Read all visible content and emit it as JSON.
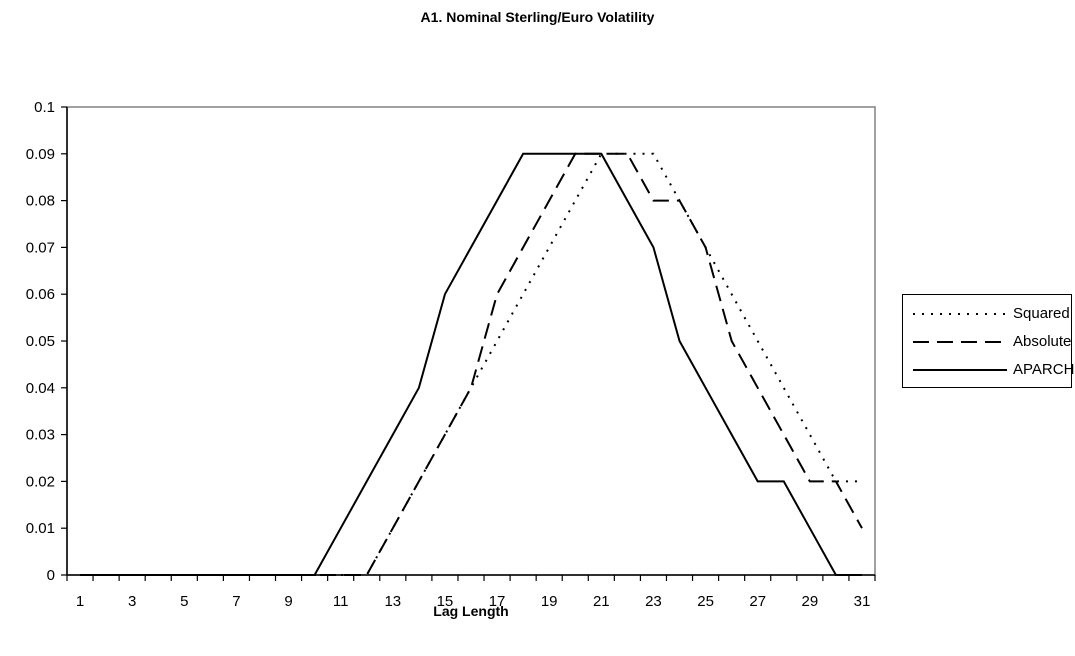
{
  "chart_data": {
    "type": "line",
    "title": "A1. Nominal Sterling/Euro Volatility",
    "xlabel": "Lag Length",
    "ylabel": "",
    "x": [
      1,
      2,
      3,
      4,
      5,
      6,
      7,
      8,
      9,
      10,
      11,
      12,
      13,
      14,
      15,
      16,
      17,
      18,
      19,
      20,
      21,
      22,
      23,
      24,
      25,
      26,
      27,
      28,
      29,
      30,
      31
    ],
    "x_tick_labels": [
      "1",
      "3",
      "5",
      "7",
      "9",
      "11",
      "13",
      "15",
      "17",
      "19",
      "21",
      "23",
      "25",
      "27",
      "29",
      "31"
    ],
    "y_tick_labels": [
      "0",
      "0.01",
      "0.02",
      "0.03",
      "0.04",
      "0.05",
      "0.06",
      "0.07",
      "0.08",
      "0.09",
      "0.1"
    ],
    "ylim": [
      0,
      0.1
    ],
    "grid": false,
    "legend_position": "right",
    "series": [
      {
        "name": "Squared",
        "style": "dotted",
        "values": [
          0,
          0,
          0,
          0,
          0,
          0,
          0,
          0,
          0,
          0,
          0,
          0,
          0.01,
          0.02,
          0.03,
          0.04,
          0.05,
          0.06,
          0.07,
          0.08,
          0.09,
          0.09,
          0.09,
          0.08,
          0.07,
          0.06,
          0.05,
          0.04,
          0.03,
          0.02,
          0.02
        ]
      },
      {
        "name": "Absolute",
        "style": "dashed",
        "values": [
          0,
          0,
          0,
          0,
          0,
          0,
          0,
          0,
          0,
          0,
          0,
          0,
          0.01,
          0.02,
          0.03,
          0.04,
          0.06,
          0.07,
          0.08,
          0.09,
          0.09,
          0.09,
          0.08,
          0.08,
          0.07,
          0.05,
          0.04,
          0.03,
          0.02,
          0.02,
          0.01
        ]
      },
      {
        "name": "APARCH",
        "style": "solid",
        "values": [
          0,
          0,
          0,
          0,
          0,
          0,
          0,
          0,
          0,
          0,
          0.01,
          0.02,
          0.03,
          0.04,
          0.06,
          0.07,
          0.08,
          0.09,
          0.09,
          0.09,
          0.09,
          0.08,
          0.07,
          0.05,
          0.04,
          0.03,
          0.02,
          0.02,
          0.01,
          0,
          0
        ]
      }
    ]
  }
}
